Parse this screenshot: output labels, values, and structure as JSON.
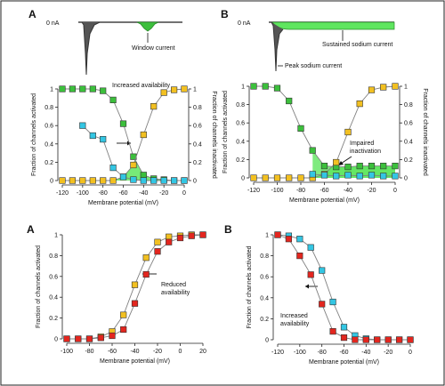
{
  "palette": {
    "green": "#3cbf3c",
    "yellow": "#f2c021",
    "cyan": "#33c6e3",
    "red": "#e3261f",
    "trace": "#444444",
    "line": "#808080",
    "fill_green": "#5fe65f"
  },
  "chart_data": [
    {
      "panel": "A",
      "type": "line",
      "title": "",
      "trace": {
        "zero_label": "0 nA",
        "annotation": "Window current"
      }
    },
    {
      "panel": "B",
      "type": "line",
      "title": "",
      "trace": {
        "zero_label": "0 nA",
        "annotations": [
          "Sustained sodium current",
          "Peak sodium current"
        ]
      }
    },
    {
      "panel": "A",
      "type": "scatter",
      "title": "",
      "xlabel": "Membrane potential (mV)",
      "ylabel": "Fraction of channels activated",
      "y2label": "Fraction of channels inactivated",
      "xlim": [
        -120,
        0
      ],
      "ylim": [
        0,
        1
      ],
      "xticks": [
        -120,
        -100,
        -80,
        -60,
        -40,
        -20,
        0
      ],
      "yticks": [
        0,
        0.2,
        0.4,
        0.6,
        0.8,
        1
      ],
      "annotations": [
        "Increased availability"
      ],
      "series": [
        {
          "color": "green",
          "x": [
            -120,
            -110,
            -100,
            -90,
            -80,
            -70,
            -60,
            -50,
            -40,
            -30,
            -20,
            -10,
            0
          ],
          "y": [
            1,
            1,
            1,
            1,
            0.98,
            0.88,
            0.62,
            0.26,
            0.06,
            0.02,
            0.01,
            0,
            0
          ]
        },
        {
          "color": "yellow",
          "x": [
            -120,
            -110,
            -100,
            -90,
            -80,
            -70,
            -60,
            -50,
            -40,
            -30,
            -20,
            -10,
            0
          ],
          "y": [
            0,
            0,
            0,
            0,
            0,
            0,
            0.04,
            0.17,
            0.5,
            0.81,
            0.96,
            0.99,
            1
          ]
        },
        {
          "color": "cyan",
          "x": [
            -100,
            -90,
            -80,
            -70,
            -60,
            -50,
            -40,
            -30,
            -20,
            -10,
            0
          ],
          "y": [
            0.6,
            0.49,
            0.45,
            0.14,
            0.04,
            0.01,
            0,
            0,
            0,
            0,
            0
          ]
        }
      ]
    },
    {
      "panel": "B",
      "type": "scatter",
      "title": "",
      "xlabel": "Membrane potential (mV)",
      "ylabel": "Fraction of channels activated",
      "y2label": "Fraction of channels inactivated",
      "xlim": [
        -120,
        0
      ],
      "ylim": [
        0,
        1
      ],
      "xticks": [
        -120,
        -100,
        -80,
        -60,
        -40,
        -20,
        0
      ],
      "yticks": [
        0,
        0.2,
        0.4,
        0.6,
        0.8,
        1
      ],
      "annotations": [
        "Impaired",
        "inactivation"
      ],
      "series": [
        {
          "color": "green",
          "x": [
            -120,
            -110,
            -100,
            -90,
            -80,
            -70,
            -60,
            -50,
            -40,
            -30,
            -20,
            -10,
            0
          ],
          "y": [
            1,
            1,
            0.98,
            0.84,
            0.54,
            0.3,
            0.13,
            0.12,
            0.12,
            0.13,
            0.13,
            0.13,
            0.13
          ]
        },
        {
          "color": "yellow",
          "x": [
            -120,
            -110,
            -100,
            -90,
            -80,
            -70,
            -60,
            -50,
            -40,
            -30,
            -20,
            -10,
            0
          ],
          "y": [
            0,
            0,
            0,
            0,
            0,
            0,
            0.04,
            0.17,
            0.5,
            0.81,
            0.96,
            0.99,
            1
          ]
        },
        {
          "color": "cyan",
          "x": [
            -70,
            -60,
            -50,
            -40,
            -30,
            -20,
            -10,
            0
          ],
          "y": [
            0.04,
            0.03,
            0.02,
            0.03,
            0.02,
            0.03,
            0.02,
            0.02
          ]
        }
      ]
    },
    {
      "panel": "A",
      "type": "scatter",
      "title": "",
      "xlabel": "Membrane potential (mV)",
      "ylabel": "Fraction of channels activated",
      "xlim": [
        -100,
        20
      ],
      "ylim": [
        0,
        1
      ],
      "xticks": [
        -100,
        -80,
        -60,
        -40,
        -20,
        0,
        20
      ],
      "yticks": [
        0,
        0.2,
        0.4,
        0.6,
        0.8,
        1
      ],
      "annotations": [
        "Reduced",
        "availability"
      ],
      "series": [
        {
          "color": "yellow",
          "x": [
            -100,
            -90,
            -80,
            -70,
            -60,
            -50,
            -40,
            -30,
            -20,
            -10,
            0,
            10,
            20
          ],
          "y": [
            0,
            0,
            0,
            0.02,
            0.07,
            0.23,
            0.52,
            0.78,
            0.93,
            0.98,
            0.99,
            1,
            1
          ]
        },
        {
          "color": "red",
          "x": [
            -100,
            -90,
            -80,
            -70,
            -60,
            -50,
            -40,
            -30,
            -20,
            -10,
            0,
            10,
            20
          ],
          "y": [
            0,
            0,
            0,
            0.01,
            0.03,
            0.09,
            0.34,
            0.62,
            0.84,
            0.93,
            0.97,
            0.99,
            1
          ]
        }
      ]
    },
    {
      "panel": "B",
      "type": "scatter",
      "title": "",
      "xlabel": "Membrane potential (mV)",
      "ylabel": "Fraction of channels activated",
      "xlim": [
        -120,
        0
      ],
      "ylim": [
        0,
        1
      ],
      "xticks": [
        -120,
        -100,
        -80,
        -60,
        -40,
        -20,
        0
      ],
      "yticks": [
        0,
        0.2,
        0.4,
        0.6,
        0.8,
        1
      ],
      "annotations": [
        "Increased",
        "availability"
      ],
      "series": [
        {
          "color": "cyan",
          "x": [
            -120,
            -110,
            -100,
            -90,
            -80,
            -70,
            -60,
            -50,
            -40,
            -30,
            -20,
            -10,
            0
          ],
          "y": [
            1,
            0.99,
            0.96,
            0.88,
            0.66,
            0.36,
            0.12,
            0.04,
            0.01,
            0,
            0,
            0,
            0
          ]
        },
        {
          "color": "red",
          "x": [
            -120,
            -110,
            -100,
            -90,
            -80,
            -70,
            -60,
            -50,
            -40,
            -30,
            -20,
            -10,
            0
          ],
          "y": [
            1,
            0.96,
            0.8,
            0.62,
            0.34,
            0.08,
            0.02,
            0,
            0,
            0,
            0,
            0,
            0
          ]
        }
      ]
    }
  ]
}
